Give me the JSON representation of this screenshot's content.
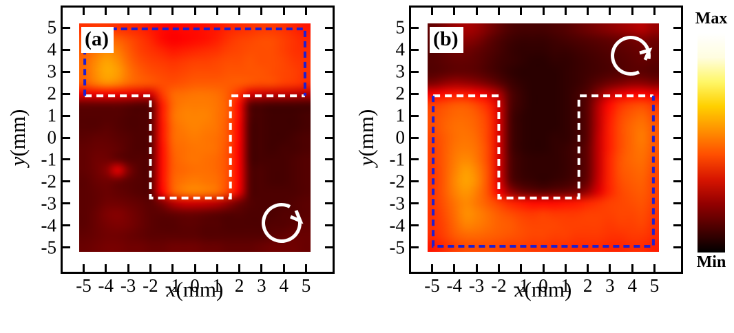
{
  "panels": [
    {
      "label": "(a)",
      "axis_x": {
        "var": "x",
        "unit": "(mm)"
      },
      "axis_y": {
        "var": "y",
        "unit": "(mm)"
      },
      "rotation": "clockwise"
    },
    {
      "label": "(b)",
      "axis_x": {
        "var": "x",
        "unit": "(mm)"
      },
      "axis_y": {
        "var": "y",
        "unit": "(mm)"
      },
      "rotation": "counterclockwise"
    }
  ],
  "colorbar": {
    "max": "Max",
    "min": "Min",
    "stops_bottom_to_top": [
      "#000000",
      "#4b0000",
      "#930000",
      "#d71500",
      "#ff4e00",
      "#ff9000",
      "#ffd000",
      "#fff768",
      "#fffde0",
      "#ffffff"
    ]
  },
  "colors": {
    "outline_white": "#ffffff",
    "outline_blue": "#1f1fd0",
    "axis": "#000000",
    "arrow": "#ffffff"
  },
  "chart_data": [
    {
      "type": "heatmap",
      "title": "(a)",
      "xlabel": "x(mm)",
      "ylabel": "y(mm)",
      "xticks": [
        -5,
        -4,
        -3,
        -2,
        -1,
        0,
        1,
        2,
        3,
        4,
        5
      ],
      "yticks": [
        -5,
        -4,
        -3,
        -2,
        -1,
        0,
        1,
        2,
        3,
        4,
        5
      ],
      "x_extent": [
        -5.2,
        5.2
      ],
      "y_extent": [
        -5.2,
        5.2
      ],
      "colormap": "hot",
      "value_scale": "relative intensity 0-100 (Min to Max)",
      "grid_step_mm": 0.5,
      "grid_x_start": -5,
      "grid_y_start": 5,
      "values": [
        [
          44,
          45,
          45,
          44,
          43,
          42,
          40,
          38,
          37,
          38,
          38,
          39,
          40,
          42,
          43,
          44,
          45,
          45,
          44,
          42,
          40
        ],
        [
          48,
          50,
          52,
          51,
          48,
          45,
          42,
          38,
          36,
          37,
          38,
          39,
          41,
          44,
          46,
          47,
          48,
          48,
          46,
          44,
          42
        ],
        [
          50,
          54,
          57,
          55,
          50,
          46,
          44,
          42,
          40,
          41,
          42,
          43,
          44,
          46,
          47,
          48,
          48,
          48,
          46,
          44,
          43
        ],
        [
          52,
          57,
          61,
          58,
          52,
          48,
          46,
          45,
          44,
          45,
          46,
          46,
          47,
          48,
          48,
          49,
          48,
          48,
          47,
          45,
          44
        ],
        [
          52,
          58,
          62,
          60,
          54,
          50,
          48,
          47,
          46,
          47,
          48,
          48,
          48,
          49,
          49,
          49,
          49,
          48,
          47,
          46,
          44
        ],
        [
          50,
          55,
          58,
          56,
          52,
          50,
          49,
          48,
          48,
          49,
          50,
          50,
          50,
          50,
          50,
          49,
          48,
          48,
          46,
          45,
          43
        ],
        [
          33,
          34,
          35,
          34,
          33,
          31,
          30,
          45,
          52,
          53,
          54,
          54,
          53,
          50,
          43,
          31,
          29,
          28,
          28,
          27,
          26
        ],
        [
          14,
          14,
          14,
          14,
          13,
          12,
          14,
          40,
          52,
          55,
          55,
          55,
          54,
          50,
          38,
          13,
          11,
          10,
          10,
          10,
          10
        ],
        [
          12,
          12,
          12,
          12,
          11,
          11,
          13,
          40,
          53,
          56,
          56,
          56,
          54,
          50,
          38,
          12,
          10,
          9,
          9,
          9,
          10
        ],
        [
          12,
          12,
          13,
          12,
          11,
          11,
          13,
          39,
          52,
          55,
          56,
          55,
          54,
          49,
          37,
          11,
          10,
          9,
          9,
          9,
          10
        ],
        [
          13,
          14,
          14,
          13,
          12,
          11,
          13,
          39,
          52,
          54,
          55,
          54,
          53,
          49,
          37,
          11,
          10,
          9,
          9,
          10,
          11
        ],
        [
          14,
          15,
          15,
          14,
          12,
          11,
          13,
          38,
          51,
          53,
          54,
          54,
          53,
          48,
          36,
          11,
          10,
          9,
          10,
          10,
          11
        ],
        [
          14,
          16,
          16,
          14,
          12,
          12,
          13,
          38,
          50,
          53,
          54,
          53,
          52,
          48,
          36,
          11,
          10,
          10,
          10,
          11,
          12
        ],
        [
          14,
          16,
          20,
          33,
          18,
          12,
          13,
          38,
          50,
          52,
          53,
          53,
          52,
          48,
          36,
          12,
          11,
          10,
          10,
          11,
          12
        ],
        [
          13,
          15,
          16,
          15,
          13,
          12,
          13,
          38,
          51,
          54,
          55,
          54,
          53,
          48,
          36,
          12,
          11,
          10,
          10,
          11,
          12
        ],
        [
          13,
          14,
          15,
          14,
          13,
          12,
          13,
          36,
          50,
          55,
          56,
          55,
          53,
          46,
          34,
          12,
          11,
          11,
          11,
          11,
          12
        ],
        [
          13,
          14,
          16,
          16,
          15,
          14,
          13,
          18,
          26,
          30,
          30,
          29,
          27,
          22,
          16,
          12,
          11,
          11,
          11,
          12,
          13
        ],
        [
          13,
          15,
          18,
          19,
          17,
          15,
          13,
          13,
          14,
          15,
          15,
          14,
          13,
          12,
          12,
          11,
          11,
          11,
          12,
          12,
          13
        ],
        [
          13,
          15,
          17,
          18,
          17,
          15,
          13,
          12,
          12,
          13,
          13,
          12,
          12,
          11,
          11,
          11,
          11,
          12,
          12,
          13,
          14
        ],
        [
          14,
          15,
          16,
          16,
          15,
          14,
          13,
          13,
          13,
          13,
          13,
          12,
          12,
          12,
          12,
          12,
          12,
          13,
          14,
          15,
          15
        ],
        [
          15,
          16,
          17,
          17,
          16,
          16,
          15,
          15,
          16,
          16,
          16,
          15,
          15,
          14,
          14,
          14,
          15,
          16,
          16,
          16,
          15
        ]
      ],
      "overlays": {
        "white_dashed_mm": [
          [
            -4.95,
            1.9
          ],
          [
            -2,
            1.9
          ],
          [
            -2,
            -2.75
          ],
          [
            1.6,
            -2.75
          ],
          [
            1.6,
            1.9
          ],
          [
            4.95,
            1.9
          ]
        ],
        "blue_dashed_mm": [
          [
            -4.95,
            1.9
          ],
          [
            -4.95,
            4.95
          ],
          [
            4.95,
            4.95
          ],
          [
            4.95,
            1.9
          ]
        ]
      },
      "annotations": {
        "rotation_arrow_center_mm": [
          3.9,
          -3.9
        ],
        "rotation": "clockwise"
      }
    },
    {
      "type": "heatmap",
      "title": "(b)",
      "xlabel": "x(mm)",
      "ylabel": "y(mm)",
      "xticks": [
        -5,
        -4,
        -3,
        -2,
        -1,
        0,
        1,
        2,
        3,
        4,
        5
      ],
      "yticks": [
        -5,
        -4,
        -3,
        -2,
        -1,
        0,
        1,
        2,
        3,
        4,
        5
      ],
      "x_extent": [
        -5.2,
        5.2
      ],
      "y_extent": [
        -5.2,
        5.2
      ],
      "colormap": "hot",
      "value_scale": "relative intensity 0-100 (Min to Max)",
      "grid_step_mm": 0.5,
      "grid_x_start": -5,
      "grid_y_start": 5,
      "values": [
        [
          14,
          18,
          22,
          24,
          22,
          18,
          14,
          11,
          10,
          10,
          10,
          11,
          12,
          14,
          16,
          18,
          20,
          22,
          24,
          26,
          22
        ],
        [
          13,
          16,
          19,
          20,
          18,
          14,
          11,
          9,
          8,
          8,
          8,
          9,
          10,
          11,
          12,
          13,
          14,
          15,
          16,
          18,
          16
        ],
        [
          12,
          14,
          16,
          16,
          14,
          12,
          10,
          8,
          7,
          7,
          7,
          8,
          8,
          9,
          10,
          11,
          12,
          13,
          14,
          15,
          14
        ],
        [
          12,
          13,
          14,
          14,
          13,
          11,
          9,
          8,
          7,
          6,
          6,
          7,
          7,
          8,
          9,
          10,
          11,
          12,
          13,
          14,
          13
        ],
        [
          12,
          13,
          14,
          14,
          13,
          11,
          9,
          7,
          6,
          6,
          6,
          6,
          7,
          8,
          9,
          10,
          11,
          12,
          13,
          13,
          12
        ],
        [
          18,
          21,
          23,
          22,
          20,
          17,
          13,
          9,
          7,
          6,
          6,
          6,
          7,
          8,
          10,
          13,
          16,
          18,
          20,
          20,
          18
        ],
        [
          35,
          38,
          40,
          40,
          37,
          32,
          25,
          12,
          8,
          6,
          6,
          6,
          7,
          9,
          12,
          20,
          28,
          33,
          36,
          37,
          34
        ],
        [
          46,
          48,
          50,
          50,
          47,
          42,
          30,
          12,
          8,
          6,
          6,
          6,
          7,
          9,
          13,
          26,
          38,
          44,
          47,
          48,
          45
        ],
        [
          48,
          50,
          52,
          52,
          50,
          45,
          31,
          11,
          7,
          6,
          6,
          6,
          7,
          9,
          13,
          27,
          40,
          47,
          50,
          52,
          48
        ],
        [
          48,
          51,
          53,
          53,
          51,
          46,
          31,
          11,
          7,
          6,
          6,
          6,
          7,
          9,
          13,
          27,
          41,
          48,
          52,
          54,
          50
        ],
        [
          47,
          50,
          53,
          54,
          52,
          46,
          31,
          11,
          7,
          6,
          6,
          7,
          7,
          9,
          13,
          28,
          41,
          48,
          52,
          55,
          50
        ],
        [
          46,
          50,
          54,
          55,
          53,
          47,
          31,
          11,
          7,
          6,
          6,
          7,
          8,
          10,
          14,
          28,
          41,
          48,
          52,
          54,
          50
        ],
        [
          46,
          50,
          55,
          57,
          54,
          47,
          31,
          12,
          8,
          7,
          7,
          7,
          8,
          10,
          14,
          28,
          42,
          49,
          52,
          53,
          49
        ],
        [
          45,
          50,
          56,
          60,
          56,
          48,
          31,
          12,
          8,
          7,
          7,
          7,
          8,
          10,
          14,
          28,
          42,
          49,
          51,
          52,
          48
        ],
        [
          45,
          50,
          57,
          61,
          57,
          48,
          32,
          13,
          9,
          8,
          7,
          8,
          9,
          11,
          15,
          29,
          42,
          48,
          50,
          51,
          47
        ],
        [
          45,
          50,
          56,
          59,
          55,
          48,
          35,
          22,
          16,
          14,
          13,
          14,
          15,
          17,
          22,
          32,
          42,
          47,
          49,
          50,
          47
        ],
        [
          45,
          49,
          54,
          57,
          54,
          50,
          46,
          42,
          40,
          38,
          38,
          38,
          39,
          40,
          42,
          44,
          46,
          47,
          48,
          49,
          46
        ],
        [
          44,
          48,
          53,
          58,
          56,
          53,
          50,
          48,
          46,
          45,
          46,
          45,
          45,
          45,
          46,
          46,
          46,
          47,
          47,
          48,
          45
        ],
        [
          44,
          47,
          52,
          56,
          55,
          53,
          51,
          50,
          48,
          47,
          47,
          47,
          46,
          46,
          46,
          46,
          45,
          46,
          46,
          47,
          44
        ],
        [
          43,
          46,
          50,
          52,
          52,
          51,
          50,
          49,
          48,
          47,
          47,
          46,
          46,
          45,
          45,
          45,
          44,
          44,
          45,
          45,
          43
        ],
        [
          40,
          43,
          46,
          48,
          48,
          48,
          47,
          46,
          46,
          45,
          45,
          44,
          44,
          43,
          43,
          43,
          42,
          42,
          43,
          43,
          41
        ]
      ],
      "overlays": {
        "white_dashed_mm": [
          [
            -4.95,
            1.9
          ],
          [
            -2,
            1.9
          ],
          [
            -2,
            -2.75
          ],
          [
            1.6,
            -2.75
          ],
          [
            1.6,
            1.9
          ],
          [
            4.95,
            1.9
          ]
        ],
        "blue_dashed_mm": [
          [
            -4.95,
            1.9
          ],
          [
            -4.95,
            -4.95
          ],
          [
            4.95,
            -4.95
          ],
          [
            4.95,
            1.9
          ]
        ]
      },
      "annotations": {
        "rotation_arrow_center_mm": [
          3.9,
          3.7
        ],
        "rotation": "counterclockwise"
      }
    }
  ]
}
